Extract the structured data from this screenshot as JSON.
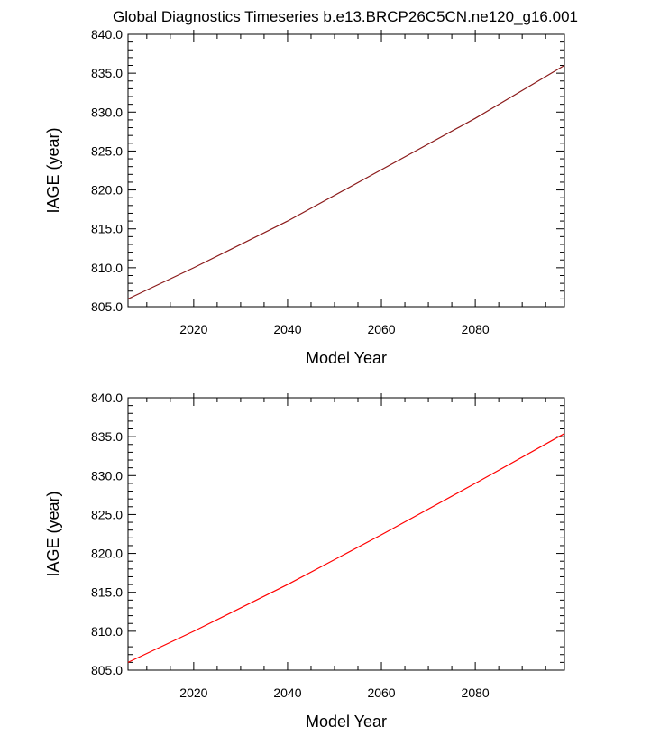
{
  "title": "Global Diagnostics Timeseries b.e13.BRCP26C5CN.ne120_g16.001",
  "chart_data": [
    {
      "type": "line",
      "xlabel": "Model Year",
      "ylabel": "IAGE (year)",
      "xlim": [
        2006,
        2099
      ],
      "ylim": [
        805.0,
        840.0
      ],
      "xticks": [
        2020,
        2040,
        2060,
        2080
      ],
      "xtick_labels": [
        "2020",
        "2040",
        "2060",
        "2080"
      ],
      "yticks": [
        805.0,
        810.0,
        815.0,
        820.0,
        825.0,
        830.0,
        835.0,
        840.0
      ],
      "ytick_labels": [
        "805.0",
        "810.0",
        "815.0",
        "820.0",
        "825.0",
        "830.0",
        "835.0",
        "840.0"
      ],
      "series": [
        {
          "color": "#8b1a1a",
          "x": [
            2006,
            2020,
            2040,
            2060,
            2080,
            2099
          ],
          "y": [
            806.0,
            810.0,
            816.0,
            822.6,
            829.2,
            836.0
          ]
        }
      ]
    },
    {
      "type": "line",
      "xlabel": "Model Year",
      "ylabel": "IAGE (year)",
      "xlim": [
        2006,
        2099
      ],
      "ylim": [
        805.0,
        840.0
      ],
      "xticks": [
        2020,
        2040,
        2060,
        2080
      ],
      "xtick_labels": [
        "2020",
        "2040",
        "2060",
        "2080"
      ],
      "yticks": [
        805.0,
        810.0,
        815.0,
        820.0,
        825.0,
        830.0,
        835.0,
        840.0
      ],
      "ytick_labels": [
        "805.0",
        "810.0",
        "815.0",
        "820.0",
        "825.0",
        "830.0",
        "835.0",
        "840.0"
      ],
      "series": [
        {
          "color": "#ff0000",
          "x": [
            2006,
            2020,
            2040,
            2060,
            2080,
            2099
          ],
          "y": [
            806.0,
            810.0,
            816.0,
            822.4,
            829.0,
            835.4
          ]
        }
      ]
    }
  ]
}
